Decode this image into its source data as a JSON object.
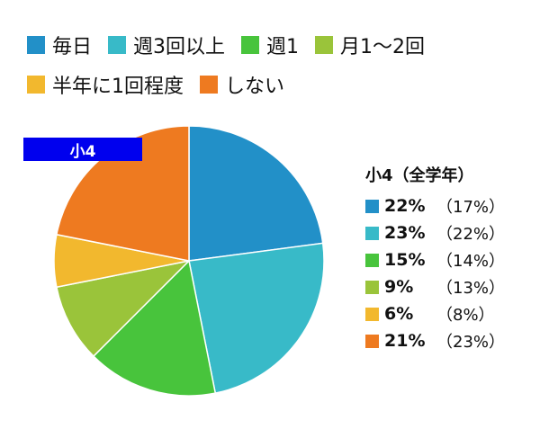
{
  "legend": {
    "rows": [
      [
        0,
        1,
        2,
        3
      ],
      [
        4,
        5
      ]
    ]
  },
  "chart_data": {
    "type": "pie",
    "title": "小4",
    "panel_title": "小4（全学年）",
    "start_angle_deg": 0,
    "direction": "clockwise",
    "slices": [
      {
        "label": "毎日",
        "value": 22,
        "value_label": "22%",
        "previous_label": "（17%）",
        "color": "#2290c8"
      },
      {
        "label": "週3回以上",
        "value": 23,
        "value_label": "23%",
        "previous_label": "（22%）",
        "color": "#38bac8"
      },
      {
        "label": "週1",
        "value": 15,
        "value_label": "15%",
        "previous_label": "（14%）",
        "color": "#48c43c"
      },
      {
        "label": "月1〜2回",
        "value": 9,
        "value_label": "9%",
        "previous_label": "（13%）",
        "color": "#9ac43a"
      },
      {
        "label": "半年に1回程度",
        "value": 6,
        "value_label": "6%",
        "previous_label": "（8%）",
        "color": "#f2b82e"
      },
      {
        "label": "しない",
        "value": 21,
        "value_label": "21%",
        "previous_label": "（23%）",
        "color": "#ee7a20"
      }
    ]
  }
}
